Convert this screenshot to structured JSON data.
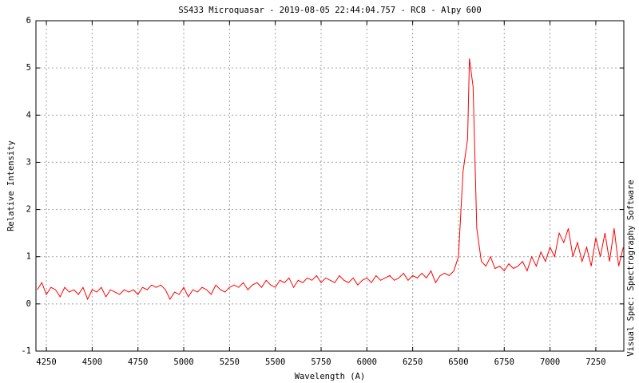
{
  "chart_data": {
    "type": "line",
    "title": "SS433 Microquasar - 2019-08-05 22:44:04.757 - RC8 - Alpy 600",
    "x_label": "Wavelength (A)",
    "y_label": "Relative Intensity",
    "side_note": "Visual Spec: Spectrography Software",
    "xlim": [
      4193,
      7403
    ],
    "ylim": [
      -1,
      6
    ],
    "xticks": [
      4250,
      4500,
      4750,
      5000,
      5250,
      5500,
      5750,
      6000,
      6250,
      6500,
      6750,
      7000,
      7250
    ],
    "yticks": [
      -1,
      0,
      1,
      2,
      3,
      4,
      5,
      6
    ],
    "grid": true,
    "x": [
      4200,
      4225,
      4250,
      4275,
      4300,
      4325,
      4350,
      4375,
      4400,
      4425,
      4450,
      4475,
      4500,
      4525,
      4550,
      4575,
      4600,
      4625,
      4650,
      4675,
      4700,
      4725,
      4750,
      4775,
      4800,
      4825,
      4850,
      4875,
      4900,
      4925,
      4950,
      4975,
      5000,
      5025,
      5050,
      5075,
      5100,
      5125,
      5150,
      5175,
      5200,
      5225,
      5250,
      5275,
      5300,
      5325,
      5350,
      5375,
      5400,
      5425,
      5450,
      5475,
      5500,
      5525,
      5550,
      5575,
      5600,
      5625,
      5650,
      5675,
      5700,
      5725,
      5750,
      5775,
      5800,
      5825,
      5850,
      5875,
      5900,
      5925,
      5950,
      5975,
      6000,
      6025,
      6050,
      6075,
      6100,
      6125,
      6150,
      6175,
      6200,
      6225,
      6250,
      6275,
      6300,
      6325,
      6350,
      6375,
      6400,
      6425,
      6450,
      6475,
      6500,
      6525,
      6550,
      6560,
      6570,
      6580,
      6600,
      6625,
      6650,
      6675,
      6700,
      6725,
      6750,
      6775,
      6800,
      6825,
      6850,
      6875,
      6900,
      6925,
      6950,
      6975,
      7000,
      7025,
      7050,
      7075,
      7100,
      7125,
      7150,
      7175,
      7200,
      7225,
      7250,
      7275,
      7300,
      7325,
      7350,
      7375,
      7400
    ],
    "series": [
      {
        "name": "SS433",
        "color": "#ff0000",
        "values": [
          0.3,
          0.45,
          0.2,
          0.35,
          0.3,
          0.15,
          0.35,
          0.25,
          0.3,
          0.2,
          0.35,
          0.1,
          0.3,
          0.25,
          0.35,
          0.15,
          0.3,
          0.25,
          0.2,
          0.3,
          0.25,
          0.3,
          0.2,
          0.35,
          0.3,
          0.4,
          0.35,
          0.4,
          0.3,
          0.1,
          0.25,
          0.2,
          0.35,
          0.15,
          0.3,
          0.25,
          0.35,
          0.3,
          0.2,
          0.4,
          0.3,
          0.25,
          0.35,
          0.4,
          0.35,
          0.45,
          0.3,
          0.4,
          0.45,
          0.35,
          0.5,
          0.4,
          0.35,
          0.5,
          0.45,
          0.55,
          0.35,
          0.5,
          0.45,
          0.55,
          0.5,
          0.6,
          0.45,
          0.55,
          0.5,
          0.45,
          0.6,
          0.5,
          0.45,
          0.55,
          0.4,
          0.5,
          0.55,
          0.45,
          0.6,
          0.5,
          0.55,
          0.6,
          0.5,
          0.55,
          0.65,
          0.5,
          0.6,
          0.55,
          0.65,
          0.55,
          0.7,
          0.45,
          0.6,
          0.65,
          0.6,
          0.7,
          1.0,
          2.8,
          3.5,
          5.2,
          4.9,
          4.6,
          1.6,
          0.9,
          0.8,
          1.0,
          0.75,
          0.8,
          0.7,
          0.85,
          0.75,
          0.8,
          0.9,
          0.7,
          1.0,
          0.8,
          1.1,
          0.9,
          1.2,
          1.0,
          1.5,
          1.3,
          1.6,
          1.0,
          1.3,
          0.9,
          1.2,
          0.8,
          1.4,
          1.0,
          1.5,
          0.9,
          1.6,
          0.8,
          1.2
        ]
      }
    ]
  }
}
